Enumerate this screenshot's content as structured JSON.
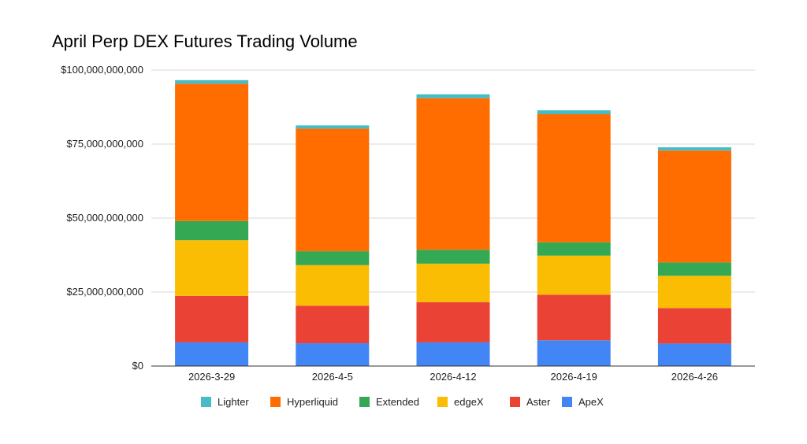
{
  "chart_data": {
    "type": "bar",
    "stacked": true,
    "title": "April Perp DEX Futures Trading Volume",
    "xlabel": "",
    "ylabel": "",
    "ylim": [
      0,
      100000000000
    ],
    "y_ticks": [
      0,
      25000000000,
      50000000000,
      75000000000,
      100000000000
    ],
    "y_tick_labels": [
      "$0",
      "$25,000,000,000",
      "$50,000,000,000",
      "$75,000,000,000",
      "$100,000,000,000"
    ],
    "grid": true,
    "legend_position": "bottom",
    "categories": [
      "2026-3-29",
      "2026-4-5",
      "2026-4-12",
      "2026-4-19",
      "2026-4-26"
    ],
    "series": [
      {
        "name": "ApeX",
        "color": "#4285F4",
        "values": [
          8000000000,
          7700000000,
          8000000000,
          8700000000,
          7600000000
        ]
      },
      {
        "name": "Aster",
        "color": "#EA4335",
        "values": [
          15700000000,
          12700000000,
          13600000000,
          15400000000,
          12000000000
        ]
      },
      {
        "name": "edgeX",
        "color": "#FBBC04",
        "values": [
          18800000000,
          13700000000,
          13000000000,
          13200000000,
          10900000000
        ]
      },
      {
        "name": "Extended",
        "color": "#34A853",
        "values": [
          6500000000,
          4700000000,
          4700000000,
          4500000000,
          4500000000
        ]
      },
      {
        "name": "Hyperliquid",
        "color": "#FF6D01",
        "values": [
          46400000000,
          41400000000,
          51200000000,
          43300000000,
          37800000000
        ]
      },
      {
        "name": "Lighter",
        "color": "#46BDC6",
        "values": [
          1200000000,
          1100000000,
          1300000000,
          1300000000,
          1100000000
        ]
      }
    ],
    "legend_order": [
      "Lighter",
      "Hyperliquid",
      "Extended",
      "edgeX",
      "Aster",
      "ApeX"
    ]
  }
}
